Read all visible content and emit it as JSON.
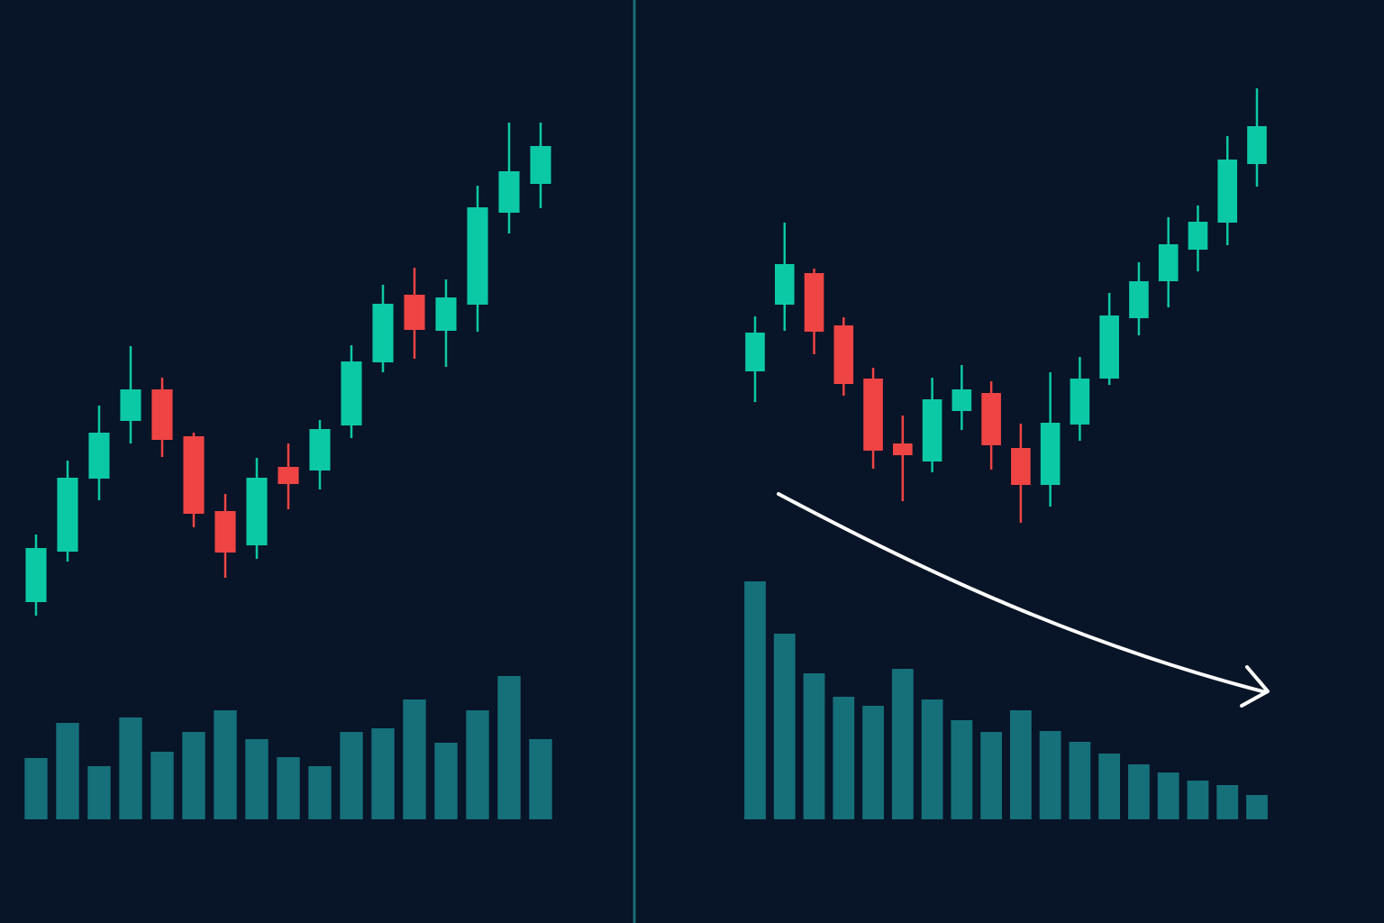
{
  "chart_data": [
    {
      "type": "candlestick",
      "open": [
        356,
        412,
        493,
        557,
        592,
        540,
        457,
        419,
        506,
        502,
        552,
        622,
        697,
        657,
        686,
        788,
        820
      ],
      "close": [
        416,
        494,
        544,
        592,
        536,
        454,
        411,
        494,
        487,
        548,
        623,
        687,
        658,
        694,
        794,
        834,
        862
      ],
      "high": [
        431,
        513,
        574,
        640,
        605,
        544,
        476,
        516,
        532,
        558,
        641,
        708,
        727,
        714,
        818,
        888,
        888
      ],
      "low": [
        341,
        401,
        469,
        532,
        517,
        439,
        383,
        404,
        459,
        481,
        538,
        611,
        626,
        617,
        656,
        765,
        793
      ],
      "up_color": "#0cc9a6",
      "down_color": "#ef4444",
      "ylim": [
        0,
        1024
      ],
      "volume": [
        68,
        107,
        59,
        113,
        75,
        97,
        121,
        89,
        69,
        59,
        97,
        101,
        133,
        85,
        121,
        159,
        89
      ],
      "volume_color": "#15707a",
      "volume_ylim": [
        0,
        300
      ]
    },
    {
      "type": "candlestick",
      "open": [
        612,
        686,
        721,
        663,
        604,
        532,
        512,
        568,
        588,
        527,
        486,
        553,
        604,
        671,
        712,
        747,
        777,
        842
      ],
      "close": [
        655,
        731,
        656,
        598,
        524,
        519,
        581,
        592,
        530,
        486,
        555,
        604,
        674,
        712,
        753,
        778,
        847,
        884
      ],
      "high": [
        673,
        777,
        726,
        672,
        616,
        563,
        605,
        619,
        601,
        554,
        611,
        628,
        699,
        733,
        783,
        796,
        873,
        926
      ],
      "low": [
        578,
        657,
        631,
        585,
        504,
        468,
        500,
        547,
        503,
        444,
        462,
        535,
        597,
        652,
        683,
        723,
        752,
        817
      ],
      "up_color": "#0cc9a6",
      "down_color": "#ef4444",
      "ylim": [
        0,
        1024
      ],
      "volume": [
        264,
        206,
        162,
        136,
        126,
        167,
        133,
        110,
        97,
        121,
        98,
        86,
        73,
        61,
        52,
        43,
        38,
        27
      ],
      "volume_color": "#15707a",
      "volume_ylim": [
        0,
        300
      ]
    }
  ]
}
